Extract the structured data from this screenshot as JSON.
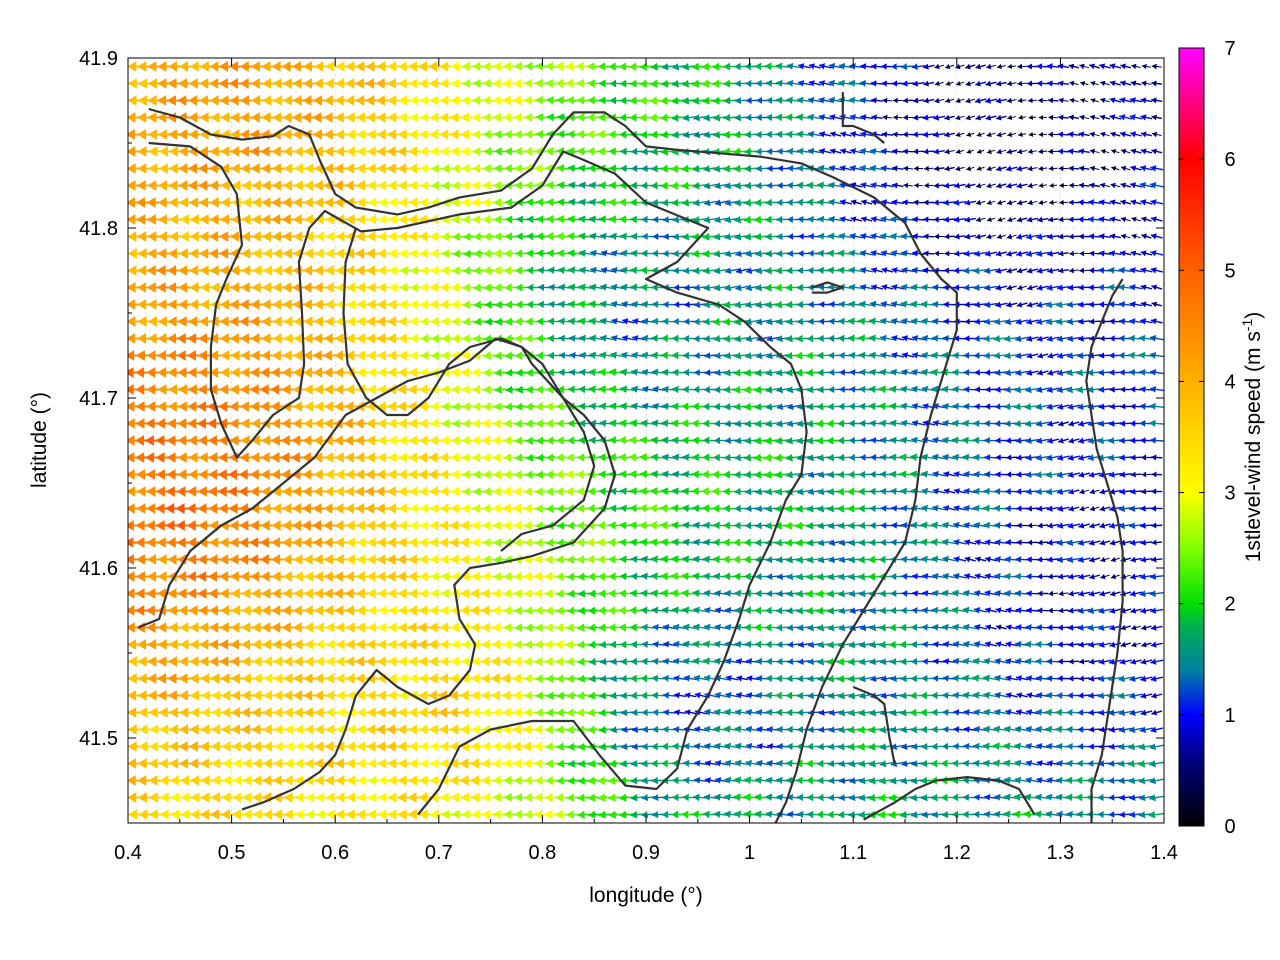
{
  "chart_data": {
    "type": "quiver",
    "xlabel": "longitude (°)",
    "ylabel": "latitude (°)",
    "xlim": [
      0.4,
      1.4
    ],
    "ylim": [
      41.45,
      41.9
    ],
    "x_ticks": [
      "0.4",
      "0.5",
      "0.6",
      "0.7",
      "0.8",
      "0.9",
      "1",
      "1.1",
      "1.2",
      "1.3",
      "1.4"
    ],
    "y_ticks": [
      "41.5",
      "41.6",
      "41.7",
      "41.8",
      "41.9"
    ],
    "colorbar": {
      "label": "1stlevel-wind speed (m s",
      "label_sup": "-1",
      "label_end": ")",
      "range": [
        0,
        7
      ],
      "ticks": [
        "0",
        "1",
        "2",
        "3",
        "4",
        "5",
        "6",
        "7"
      ],
      "stops": [
        [
          0,
          "#000000"
        ],
        [
          0.6,
          "#000080"
        ],
        [
          1,
          "#0000ff"
        ],
        [
          1.4,
          "#0080a0"
        ],
        [
          1.8,
          "#00b050"
        ],
        [
          2,
          "#00e000"
        ],
        [
          2.5,
          "#80ff00"
        ],
        [
          3,
          "#ffff00"
        ],
        [
          4,
          "#ffb000"
        ],
        [
          5,
          "#ff6000"
        ],
        [
          6,
          "#ff0000"
        ],
        [
          7,
          "#ff00ff"
        ]
      ]
    },
    "wind": {
      "grid_dx": 0.01,
      "grid_dy": 0.01,
      "direction": "mostly westward (from the east)",
      "speed_regions": [
        {
          "lon": 0.45,
          "lat": 41.68,
          "speed": 4.6
        },
        {
          "lon": 0.46,
          "lat": 41.64,
          "speed": 4.8
        },
        {
          "lon": 0.5,
          "lat": 41.88,
          "speed": 4.2
        },
        {
          "lon": 0.7,
          "lat": 41.52,
          "speed": 3.5
        },
        {
          "lon": 0.9,
          "lat": 41.75,
          "speed": 1.4
        },
        {
          "lon": 0.95,
          "lat": 41.52,
          "speed": 1.2
        },
        {
          "lon": 1.25,
          "lat": 41.85,
          "speed": 0.4
        },
        {
          "lon": 1.35,
          "lat": 41.6,
          "speed": 0.8
        }
      ]
    },
    "contours": [
      [
        [
          0.42,
          41.87
        ],
        [
          0.45,
          41.865
        ],
        [
          0.48,
          41.855
        ],
        [
          0.51,
          41.852
        ],
        [
          0.54,
          41.854
        ],
        [
          0.555,
          41.86
        ],
        [
          0.575,
          41.855
        ],
        [
          0.585,
          41.84
        ],
        [
          0.6,
          41.82
        ],
        [
          0.62,
          41.812
        ],
        [
          0.66,
          41.808
        ],
        [
          0.69,
          41.812
        ],
        [
          0.72,
          41.818
        ],
        [
          0.76,
          41.822
        ],
        [
          0.79,
          41.835
        ],
        [
          0.81,
          41.855
        ],
        [
          0.83,
          41.868
        ],
        [
          0.86,
          41.868
        ],
        [
          0.88,
          41.86
        ],
        [
          0.9,
          41.848
        ],
        [
          0.93,
          41.846
        ],
        [
          0.97,
          41.844
        ],
        [
          1.01,
          41.842
        ],
        [
          1.05,
          41.838
        ],
        [
          1.08,
          41.83
        ],
        [
          1.12,
          41.818
        ],
        [
          1.15,
          41.803
        ],
        [
          1.165,
          41.785
        ],
        [
          1.185,
          41.77
        ],
        [
          1.2,
          41.762
        ],
        [
          1.2,
          41.74
        ],
        [
          1.19,
          41.72
        ],
        [
          1.175,
          41.69
        ],
        [
          1.165,
          41.665
        ],
        [
          1.16,
          41.64
        ],
        [
          1.15,
          41.615
        ],
        [
          1.13,
          41.595
        ],
        [
          1.11,
          41.575
        ],
        [
          1.09,
          41.555
        ],
        [
          1.07,
          41.53
        ],
        [
          1.055,
          41.505
        ],
        [
          1.045,
          41.48
        ],
        [
          1.035,
          41.462
        ],
        [
          1.025,
          41.45
        ]
      ],
      [
        [
          0.42,
          41.85
        ],
        [
          0.46,
          41.848
        ],
        [
          0.49,
          41.836
        ],
        [
          0.505,
          41.82
        ],
        [
          0.51,
          41.79
        ],
        [
          0.495,
          41.77
        ],
        [
          0.485,
          41.755
        ],
        [
          0.48,
          41.73
        ],
        [
          0.48,
          41.705
        ],
        [
          0.49,
          41.685
        ],
        [
          0.505,
          41.665
        ],
        [
          0.52,
          41.675
        ],
        [
          0.54,
          41.69
        ],
        [
          0.565,
          41.7
        ],
        [
          0.57,
          41.72
        ],
        [
          0.568,
          41.75
        ],
        [
          0.565,
          41.78
        ],
        [
          0.575,
          41.8
        ],
        [
          0.59,
          41.81
        ],
        [
          0.625,
          41.798
        ],
        [
          0.66,
          41.8
        ],
        [
          0.72,
          41.808
        ],
        [
          0.77,
          41.812
        ],
        [
          0.8,
          41.825
        ],
        [
          0.82,
          41.845
        ],
        [
          0.84,
          41.84
        ],
        [
          0.87,
          41.832
        ],
        [
          0.9,
          41.815
        ],
        [
          0.92,
          41.81
        ],
        [
          0.96,
          41.8
        ],
        [
          0.93,
          41.78
        ],
        [
          0.9,
          41.77
        ],
        [
          0.93,
          41.762
        ],
        [
          0.97,
          41.755
        ],
        [
          0.995,
          41.745
        ],
        [
          1.02,
          41.73
        ],
        [
          1.04,
          41.72
        ],
        [
          1.05,
          41.705
        ],
        [
          1.055,
          41.68
        ],
        [
          1.05,
          41.655
        ],
        [
          1.035,
          41.64
        ],
        [
          1.02,
          41.615
        ],
        [
          1.0,
          41.59
        ],
        [
          0.99,
          41.57
        ],
        [
          0.975,
          41.545
        ],
        [
          0.96,
          41.525
        ],
        [
          0.94,
          41.505
        ],
        [
          0.93,
          41.482
        ],
        [
          0.91,
          41.47
        ],
        [
          0.88,
          41.472
        ],
        [
          0.855,
          41.49
        ],
        [
          0.83,
          41.51
        ],
        [
          0.79,
          41.51
        ],
        [
          0.75,
          41.505
        ],
        [
          0.72,
          41.495
        ],
        [
          0.7,
          41.47
        ],
        [
          0.68,
          41.455
        ]
      ],
      [
        [
          0.41,
          41.565
        ],
        [
          0.43,
          41.57
        ],
        [
          0.44,
          41.59
        ],
        [
          0.46,
          41.61
        ],
        [
          0.49,
          41.625
        ],
        [
          0.52,
          41.635
        ],
        [
          0.55,
          41.65
        ],
        [
          0.58,
          41.665
        ],
        [
          0.61,
          41.69
        ],
        [
          0.64,
          41.7
        ],
        [
          0.67,
          41.71
        ],
        [
          0.7,
          41.715
        ],
        [
          0.73,
          41.722
        ],
        [
          0.755,
          41.735
        ],
        [
          0.78,
          41.73
        ],
        [
          0.8,
          41.72
        ],
        [
          0.82,
          41.7
        ],
        [
          0.84,
          41.69
        ],
        [
          0.86,
          41.675
        ],
        [
          0.87,
          41.655
        ],
        [
          0.86,
          41.635
        ],
        [
          0.83,
          41.615
        ],
        [
          0.79,
          41.607
        ],
        [
          0.76,
          41.603
        ],
        [
          0.73,
          41.6
        ],
        [
          0.715,
          41.59
        ],
        [
          0.72,
          41.57
        ],
        [
          0.735,
          41.555
        ],
        [
          0.73,
          41.54
        ],
        [
          0.71,
          41.525
        ],
        [
          0.69,
          41.52
        ],
        [
          0.66,
          41.53
        ],
        [
          0.64,
          41.54
        ],
        [
          0.62,
          41.525
        ],
        [
          0.61,
          41.505
        ],
        [
          0.6,
          41.49
        ],
        [
          0.585,
          41.48
        ],
        [
          0.56,
          41.47
        ],
        [
          0.53,
          41.462
        ],
        [
          0.51,
          41.458
        ]
      ],
      [
        [
          0.62,
          41.8
        ],
        [
          0.61,
          41.78
        ],
        [
          0.608,
          41.75
        ],
        [
          0.612,
          41.72
        ],
        [
          0.63,
          41.7
        ],
        [
          0.65,
          41.69
        ],
        [
          0.67,
          41.69
        ],
        [
          0.69,
          41.7
        ],
        [
          0.71,
          41.72
        ],
        [
          0.73,
          41.73
        ],
        [
          0.76,
          41.735
        ],
        [
          0.78,
          41.73
        ],
        [
          0.79,
          41.72
        ],
        [
          0.82,
          41.7
        ],
        [
          0.84,
          41.68
        ],
        [
          0.85,
          41.66
        ],
        [
          0.84,
          41.64
        ],
        [
          0.81,
          41.625
        ],
        [
          0.78,
          41.62
        ],
        [
          0.76,
          41.61
        ]
      ],
      [
        [
          1.275,
          41.455
        ],
        [
          1.26,
          41.47
        ],
        [
          1.24,
          41.475
        ],
        [
          1.21,
          41.477
        ],
        [
          1.18,
          41.475
        ],
        [
          1.16,
          41.47
        ],
        [
          1.14,
          41.462
        ],
        [
          1.11,
          41.452
        ]
      ],
      [
        [
          1.09,
          41.88
        ],
        [
          1.09,
          41.86
        ],
        [
          1.1,
          41.86
        ],
        [
          1.12,
          41.855
        ],
        [
          1.13,
          41.85
        ]
      ],
      [
        [
          1.33,
          41.45
        ],
        [
          1.33,
          41.47
        ],
        [
          1.34,
          41.49
        ],
        [
          1.345,
          41.51
        ],
        [
          1.35,
          41.53
        ],
        [
          1.355,
          41.55
        ],
        [
          1.36,
          41.58
        ],
        [
          1.36,
          41.61
        ],
        [
          1.355,
          41.63
        ],
        [
          1.345,
          41.65
        ],
        [
          1.335,
          41.67
        ],
        [
          1.33,
          41.69
        ],
        [
          1.325,
          41.71
        ],
        [
          1.33,
          41.73
        ],
        [
          1.34,
          41.745
        ],
        [
          1.35,
          41.76
        ],
        [
          1.36,
          41.77
        ]
      ],
      [
        [
          1.1,
          41.53
        ],
        [
          1.12,
          41.525
        ],
        [
          1.13,
          41.52
        ],
        [
          1.135,
          41.5
        ],
        [
          1.14,
          41.485
        ]
      ],
      [
        [
          1.06,
          41.762
        ],
        [
          1.075,
          41.762
        ],
        [
          1.09,
          41.765
        ],
        [
          1.075,
          41.768
        ],
        [
          1.06,
          41.765
        ]
      ]
    ]
  }
}
